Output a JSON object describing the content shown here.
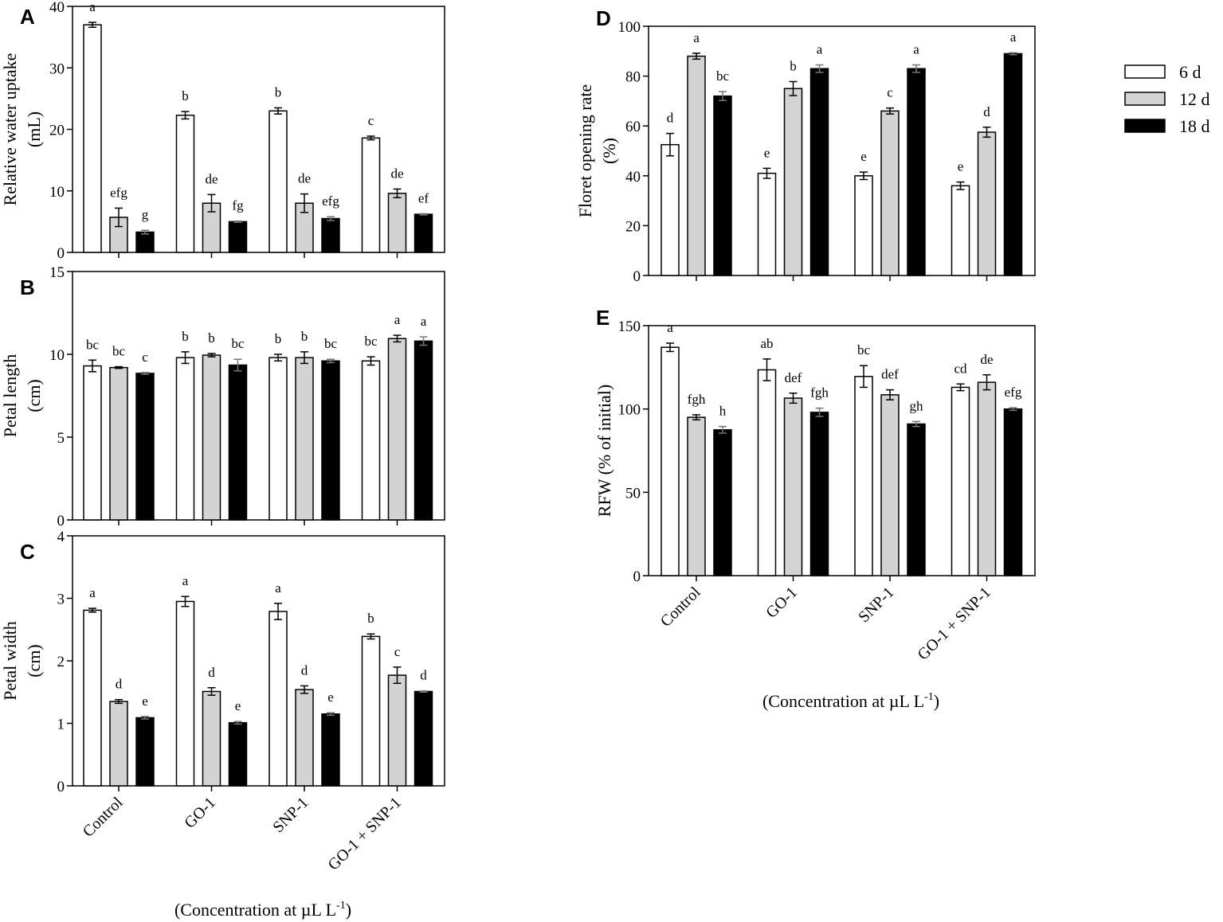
{
  "colors": {
    "series": [
      "#ffffff",
      "#d3d3d3",
      "#000000"
    ],
    "stroke": "#000000"
  },
  "legend": {
    "placement": "top-right",
    "entries": [
      "6 d",
      "12 d",
      "18 d"
    ]
  },
  "x_title": {
    "main": "(Concentration at µL L",
    "sup": "-1",
    "close": ")"
  },
  "chart_data": [
    {
      "id": "A",
      "letter": "A",
      "type": "bar",
      "ylabel": [
        "Relative water uptake",
        "(mL)"
      ],
      "ylim": [
        0,
        40
      ],
      "yticks": [
        0,
        10,
        20,
        30,
        40
      ],
      "categories": [
        "Control",
        "GO-1",
        "SNP-1",
        "GO-1 + SNP-1"
      ],
      "series": [
        {
          "name": "6 d",
          "values": [
            37.0,
            22.3,
            23.0,
            18.6
          ],
          "errors": [
            0.4,
            0.6,
            0.5,
            0.3
          ],
          "letters": [
            "a",
            "b",
            "b",
            "c"
          ]
        },
        {
          "name": "12 d",
          "values": [
            5.7,
            8.0,
            8.0,
            9.6
          ],
          "errors": [
            1.5,
            1.4,
            1.5,
            0.7
          ],
          "letters": [
            "efg",
            "de",
            "de",
            "de"
          ]
        },
        {
          "name": "18 d",
          "values": [
            3.3,
            5.0,
            5.5,
            6.2
          ],
          "errors": [
            0.3,
            0.1,
            0.3,
            0.1
          ],
          "letters": [
            "g",
            "fg",
            "efg",
            "ef"
          ]
        }
      ]
    },
    {
      "id": "B",
      "letter": "B",
      "type": "bar",
      "ylabel": [
        "Petal length",
        "(cm)"
      ],
      "ylim": [
        0,
        15
      ],
      "yticks": [
        0,
        5,
        10,
        15
      ],
      "categories": [
        "Control",
        "GO-1",
        "SNP-1",
        "GO-1 + SNP-1"
      ],
      "series": [
        {
          "name": "6 d",
          "values": [
            9.3,
            9.8,
            9.8,
            9.6
          ],
          "errors": [
            0.35,
            0.35,
            0.2,
            0.25
          ],
          "letters": [
            "bc",
            "b",
            "b",
            "bc"
          ]
        },
        {
          "name": "12 d",
          "values": [
            9.2,
            9.95,
            9.8,
            10.95
          ],
          "errors": [
            0.05,
            0.1,
            0.35,
            0.2
          ],
          "letters": [
            "bc",
            "b",
            "b",
            "a"
          ]
        },
        {
          "name": "18 d",
          "values": [
            8.85,
            9.35,
            9.6,
            10.8
          ],
          "errors": [
            0.05,
            0.35,
            0.1,
            0.25
          ],
          "letters": [
            "c",
            "bc",
            "bc",
            "a"
          ]
        }
      ]
    },
    {
      "id": "C",
      "letter": "C",
      "type": "bar",
      "ylabel": [
        "Petal width",
        "(cm)"
      ],
      "ylim": [
        0,
        4
      ],
      "yticks": [
        0,
        1,
        2,
        3,
        4
      ],
      "categories": [
        "Control",
        "GO-1",
        "SNP-1",
        "GO-1 + SNP-1"
      ],
      "series": [
        {
          "name": "6 d",
          "values": [
            2.81,
            2.95,
            2.79,
            2.39
          ],
          "errors": [
            0.03,
            0.08,
            0.13,
            0.04
          ],
          "letters": [
            "a",
            "a",
            "a",
            "b"
          ]
        },
        {
          "name": "12 d",
          "values": [
            1.35,
            1.51,
            1.54,
            1.77
          ],
          "errors": [
            0.03,
            0.06,
            0.06,
            0.13
          ],
          "letters": [
            "d",
            "d",
            "d",
            "c"
          ]
        },
        {
          "name": "18 d",
          "values": [
            1.09,
            1.01,
            1.15,
            1.51
          ],
          "errors": [
            0.02,
            0.02,
            0.02,
            0.01
          ],
          "letters": [
            "e",
            "e",
            "e",
            "d"
          ]
        }
      ]
    },
    {
      "id": "D",
      "letter": "D",
      "type": "bar",
      "ylabel": [
        "Floret opening rate",
        "(%)"
      ],
      "ylim": [
        0,
        100
      ],
      "yticks": [
        0,
        20,
        40,
        60,
        80,
        100
      ],
      "categories": [
        "Control",
        "GO-1",
        "SNP-1",
        "GO-1 + SNP-1"
      ],
      "series": [
        {
          "name": "6 d",
          "values": [
            52.5,
            41.0,
            40.0,
            36.0
          ],
          "errors": [
            4.5,
            2.0,
            1.5,
            1.5
          ],
          "letters": [
            "d",
            "e",
            "e",
            "e"
          ]
        },
        {
          "name": "12 d",
          "values": [
            88.0,
            75.0,
            66.0,
            57.5
          ],
          "errors": [
            1.2,
            2.8,
            1.2,
            2.0
          ],
          "letters": [
            "a",
            "b",
            "c",
            "d"
          ]
        },
        {
          "name": "18 d",
          "values": [
            72.0,
            83.0,
            83.0,
            89.0
          ],
          "errors": [
            1.8,
            1.5,
            1.5,
            0.4
          ],
          "letters": [
            "bc",
            "a",
            "a",
            "a"
          ]
        }
      ]
    },
    {
      "id": "E",
      "letter": "E",
      "type": "bar",
      "ylabel": [
        "RFW (% of initial)"
      ],
      "ylim": [
        0,
        150
      ],
      "yticks": [
        0,
        50,
        100,
        150
      ],
      "categories": [
        "Control",
        "GO-1",
        "SNP-1",
        "GO-1 + SNP-1"
      ],
      "series": [
        {
          "name": "6 d",
          "values": [
            137,
            123.5,
            119.5,
            113
          ],
          "errors": [
            2.5,
            6.5,
            6.5,
            2.0
          ],
          "letters": [
            "a",
            "ab",
            "bc",
            "cd"
          ]
        },
        {
          "name": "12 d",
          "values": [
            95,
            106.5,
            108.5,
            116
          ],
          "errors": [
            1.5,
            3.0,
            3.0,
            4.5
          ],
          "letters": [
            "fgh",
            "def",
            "def",
            "de"
          ]
        },
        {
          "name": "18 d",
          "values": [
            87.5,
            98,
            91,
            100
          ],
          "errors": [
            2.0,
            2.5,
            1.5,
            0.8
          ],
          "letters": [
            "h",
            "fgh",
            "gh",
            "efg"
          ]
        }
      ]
    }
  ]
}
